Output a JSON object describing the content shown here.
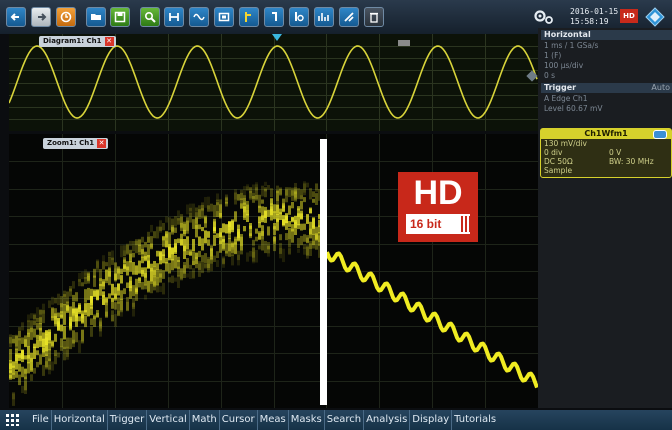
{
  "datetime": {
    "date": "2016-01-15",
    "time": "15:58:19"
  },
  "hd_badge": "HD",
  "horizontal": {
    "title": "Horizontal",
    "lines": [
      "1 ms / 1 GSa/s",
      "1 (F)",
      "100 µs/div",
      "0 s"
    ]
  },
  "trigger": {
    "title": "Trigger",
    "mode": "Auto",
    "lines": [
      "A    Edge  Ch1",
      "Level  60.67 mV"
    ]
  },
  "waveform": {
    "title": "Ch1Wfm1",
    "scale": "130 mV/div",
    "offset_label": "0 div",
    "offset_value": "0 V",
    "coupling": "DC 50Ω",
    "bw": "BW: 30 MHz",
    "mode": "Sample",
    "color": "#d6d12c"
  },
  "diagram": {
    "label": "Diagram1: Ch1"
  },
  "zoom": {
    "label": "Zoom1: Ch1"
  },
  "hd_logo": {
    "big": "HD",
    "small": "16 bit"
  },
  "menu": {
    "items": [
      "File",
      "Horizontal",
      "Trigger",
      "Vertical",
      "Math",
      "Cursor",
      "Meas",
      "Masks",
      "Search",
      "Analysis",
      "Display",
      "Tutorials"
    ]
  },
  "colors": {
    "trace": "#e8e61a",
    "toolbar": "#1f2e3d",
    "hd_red": "#c8281a"
  },
  "toolbar_icons": [
    "back-icon",
    "forward-icon",
    "autoset-icon",
    "open-file-icon",
    "save-icon",
    "zoom-icon",
    "hardcopy-icon",
    "math-icon",
    "screenshot-icon",
    "cursor-icon",
    "measure-icon",
    "history-icon",
    "fft-icon",
    "mask-icon",
    "delete-icon"
  ]
}
